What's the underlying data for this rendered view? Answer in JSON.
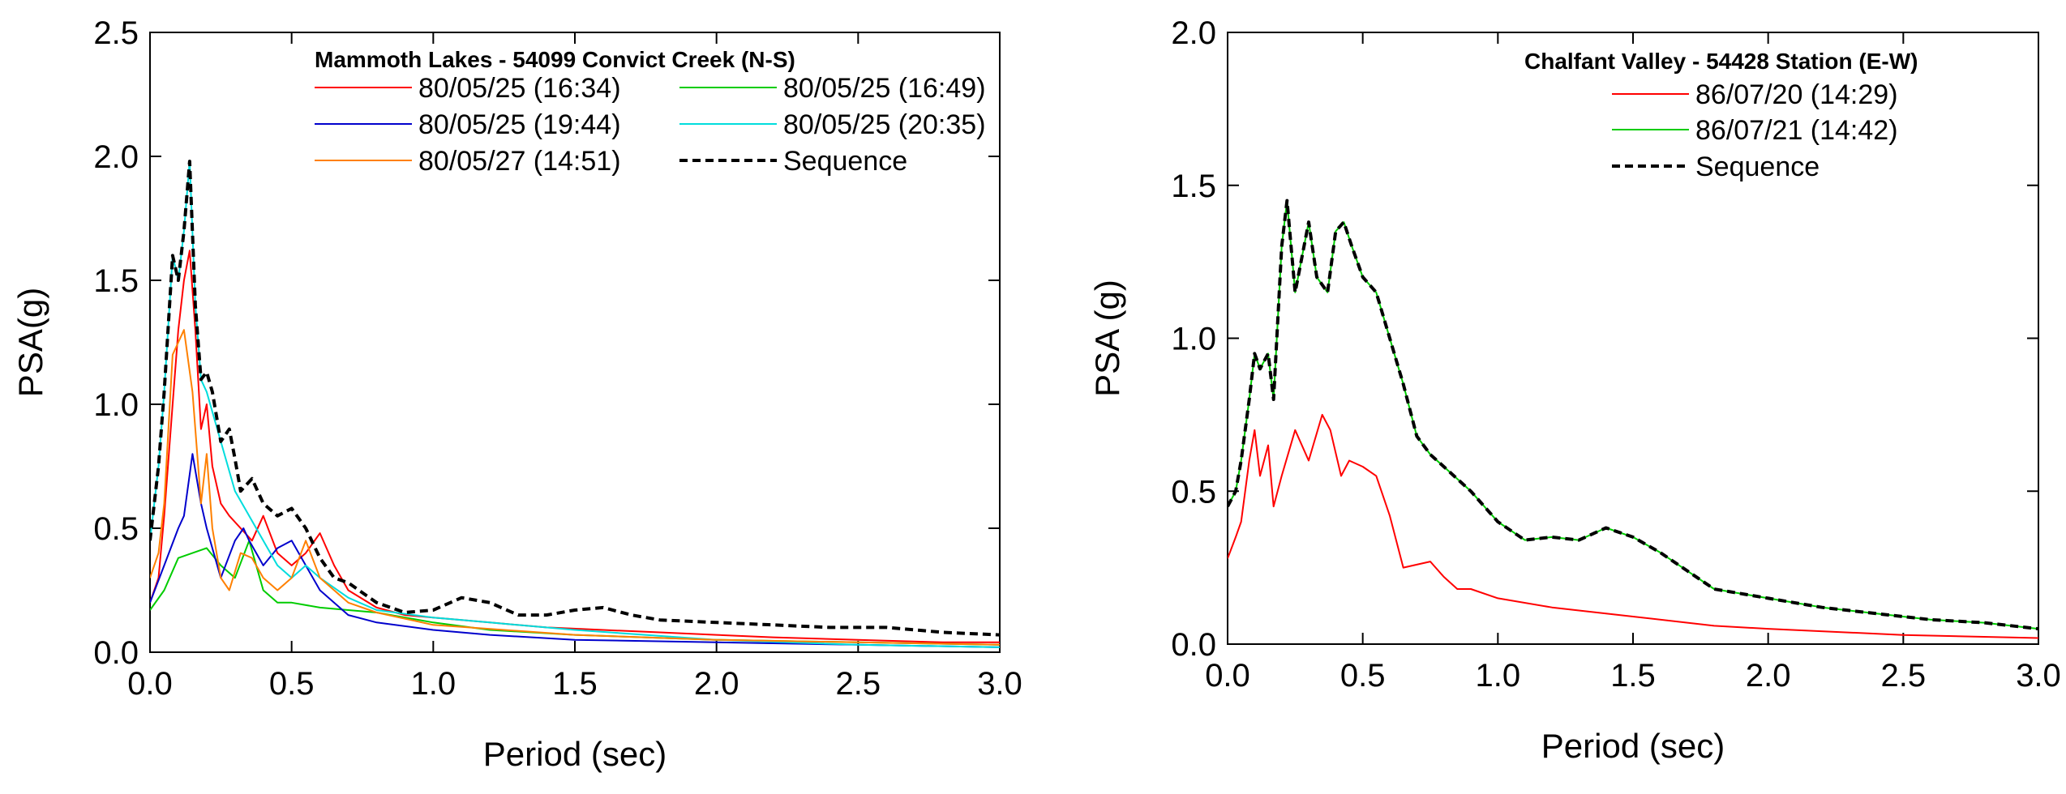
{
  "chart_data": [
    {
      "type": "line",
      "title": "Mammoth Lakes - 54099 Convict Creek (N-S)",
      "xlabel": "Period (sec)",
      "ylabel": "PSA(g)",
      "xlim": [
        0,
        3
      ],
      "ylim": [
        0,
        2.5
      ],
      "xticks": [
        "0.0",
        "0.5",
        "1.0",
        "1.5",
        "2.0",
        "2.5",
        "3.0"
      ],
      "yticks": [
        "0.0",
        "0.5",
        "1.0",
        "1.5",
        "2.0",
        "2.5"
      ],
      "legend_position": "top-right",
      "series": [
        {
          "name": "80/05/25 (16:34)",
          "color": "#ff0000",
          "dash": "solid",
          "x": [
            0.0,
            0.03,
            0.05,
            0.08,
            0.1,
            0.12,
            0.14,
            0.16,
            0.18,
            0.2,
            0.22,
            0.25,
            0.28,
            0.32,
            0.36,
            0.4,
            0.45,
            0.5,
            0.55,
            0.6,
            0.65,
            0.7,
            0.8,
            0.9,
            1.0,
            1.1,
            1.2,
            1.4,
            1.6,
            1.8,
            2.0,
            2.2,
            2.5,
            2.8,
            3.0
          ],
          "y": [
            0.2,
            0.3,
            0.55,
            1.0,
            1.3,
            1.5,
            1.62,
            1.3,
            0.9,
            1.0,
            0.75,
            0.6,
            0.55,
            0.5,
            0.45,
            0.55,
            0.4,
            0.35,
            0.4,
            0.48,
            0.35,
            0.25,
            0.18,
            0.15,
            0.14,
            0.13,
            0.12,
            0.1,
            0.09,
            0.08,
            0.07,
            0.06,
            0.05,
            0.04,
            0.04
          ]
        },
        {
          "name": "80/05/25 (16:49)",
          "color": "#00cc00",
          "dash": "solid",
          "x": [
            0.0,
            0.05,
            0.1,
            0.15,
            0.2,
            0.25,
            0.3,
            0.35,
            0.4,
            0.45,
            0.5,
            0.6,
            0.7,
            0.8,
            1.0,
            1.2,
            1.5,
            2.0,
            2.5,
            3.0
          ],
          "y": [
            0.17,
            0.25,
            0.38,
            0.4,
            0.42,
            0.35,
            0.3,
            0.45,
            0.25,
            0.2,
            0.2,
            0.18,
            0.17,
            0.16,
            0.12,
            0.09,
            0.07,
            0.05,
            0.04,
            0.03
          ]
        },
        {
          "name": "80/05/25 (19:44)",
          "color": "#0000cc",
          "dash": "solid",
          "x": [
            0.0,
            0.05,
            0.1,
            0.12,
            0.15,
            0.18,
            0.2,
            0.25,
            0.3,
            0.33,
            0.35,
            0.4,
            0.45,
            0.5,
            0.55,
            0.6,
            0.7,
            0.8,
            1.0,
            1.2,
            1.5,
            2.0,
            2.5,
            3.0
          ],
          "y": [
            0.2,
            0.35,
            0.5,
            0.55,
            0.8,
            0.6,
            0.5,
            0.3,
            0.45,
            0.5,
            0.45,
            0.35,
            0.42,
            0.45,
            0.35,
            0.25,
            0.15,
            0.12,
            0.09,
            0.07,
            0.05,
            0.04,
            0.03,
            0.02
          ]
        },
        {
          "name": "80/05/25 (20:35)",
          "color": "#00dddd",
          "dash": "solid",
          "x": [
            0.0,
            0.03,
            0.05,
            0.08,
            0.1,
            0.12,
            0.14,
            0.16,
            0.18,
            0.2,
            0.25,
            0.3,
            0.35,
            0.4,
            0.45,
            0.5,
            0.55,
            0.6,
            0.7,
            0.8,
            1.0,
            1.2,
            1.5,
            2.0,
            2.5,
            3.0
          ],
          "y": [
            0.45,
            0.75,
            1.05,
            1.6,
            1.5,
            1.7,
            1.98,
            1.4,
            1.1,
            1.05,
            0.85,
            0.65,
            0.55,
            0.45,
            0.35,
            0.3,
            0.35,
            0.3,
            0.22,
            0.17,
            0.14,
            0.12,
            0.09,
            0.05,
            0.03,
            0.02
          ]
        },
        {
          "name": "80/05/27 (14:51)",
          "color": "#ff8000",
          "dash": "solid",
          "x": [
            0.0,
            0.03,
            0.05,
            0.08,
            0.1,
            0.12,
            0.15,
            0.18,
            0.2,
            0.22,
            0.25,
            0.28,
            0.32,
            0.36,
            0.4,
            0.45,
            0.5,
            0.55,
            0.6,
            0.7,
            0.8,
            1.0,
            1.5,
            2.0,
            2.5,
            3.0
          ],
          "y": [
            0.3,
            0.4,
            0.6,
            1.2,
            1.25,
            1.3,
            1.05,
            0.6,
            0.8,
            0.5,
            0.3,
            0.25,
            0.4,
            0.38,
            0.3,
            0.25,
            0.3,
            0.45,
            0.3,
            0.2,
            0.16,
            0.11,
            0.07,
            0.05,
            0.04,
            0.03
          ]
        },
        {
          "name": "Sequence",
          "color": "#000000",
          "dash": "dashed",
          "x": [
            0.0,
            0.03,
            0.05,
            0.08,
            0.1,
            0.12,
            0.14,
            0.16,
            0.18,
            0.2,
            0.22,
            0.25,
            0.28,
            0.3,
            0.32,
            0.36,
            0.4,
            0.45,
            0.5,
            0.55,
            0.6,
            0.65,
            0.7,
            0.8,
            0.9,
            1.0,
            1.1,
            1.2,
            1.3,
            1.4,
            1.5,
            1.6,
            1.7,
            1.8,
            2.0,
            2.2,
            2.4,
            2.6,
            2.8,
            3.0
          ],
          "y": [
            0.45,
            0.75,
            1.05,
            1.6,
            1.5,
            1.7,
            1.98,
            1.4,
            1.1,
            1.13,
            1.05,
            0.85,
            0.9,
            0.78,
            0.65,
            0.7,
            0.6,
            0.55,
            0.58,
            0.5,
            0.38,
            0.3,
            0.28,
            0.2,
            0.16,
            0.17,
            0.22,
            0.2,
            0.15,
            0.15,
            0.17,
            0.18,
            0.15,
            0.13,
            0.12,
            0.11,
            0.1,
            0.1,
            0.08,
            0.07
          ]
        }
      ]
    },
    {
      "type": "line",
      "title": "Chalfant Valley - 54428 Station (E-W)",
      "xlabel": "Period (sec)",
      "ylabel": "PSA (g)",
      "xlim": [
        0,
        3
      ],
      "ylim": [
        0,
        2
      ],
      "xticks": [
        "0.0",
        "0.5",
        "1.0",
        "1.5",
        "2.0",
        "2.5",
        "3.0"
      ],
      "yticks": [
        "0.0",
        "0.5",
        "1.0",
        "1.5",
        "2.0"
      ],
      "legend_position": "top-right",
      "series": [
        {
          "name": "86/07/20 (14:29)",
          "color": "#ff0000",
          "dash": "solid",
          "x": [
            0.0,
            0.03,
            0.05,
            0.08,
            0.1,
            0.12,
            0.15,
            0.17,
            0.2,
            0.25,
            0.3,
            0.35,
            0.38,
            0.42,
            0.45,
            0.5,
            0.55,
            0.6,
            0.65,
            0.7,
            0.75,
            0.8,
            0.85,
            0.9,
            1.0,
            1.2,
            1.5,
            1.8,
            2.0,
            2.5,
            3.0
          ],
          "y": [
            0.28,
            0.35,
            0.4,
            0.6,
            0.7,
            0.55,
            0.65,
            0.45,
            0.55,
            0.7,
            0.6,
            0.75,
            0.7,
            0.55,
            0.6,
            0.58,
            0.55,
            0.42,
            0.25,
            0.26,
            0.27,
            0.22,
            0.18,
            0.18,
            0.15,
            0.12,
            0.09,
            0.06,
            0.05,
            0.03,
            0.02
          ]
        },
        {
          "name": "86/07/21 (14:42)",
          "color": "#00cc00",
          "dash": "solid",
          "x": [
            0.0,
            0.03,
            0.05,
            0.08,
            0.1,
            0.12,
            0.15,
            0.17,
            0.2,
            0.22,
            0.25,
            0.3,
            0.33,
            0.37,
            0.4,
            0.43,
            0.46,
            0.5,
            0.55,
            0.6,
            0.65,
            0.7,
            0.75,
            0.8,
            0.9,
            1.0,
            1.1,
            1.2,
            1.3,
            1.4,
            1.5,
            1.6,
            1.7,
            1.8,
            2.0,
            2.2,
            2.4,
            2.6,
            2.8,
            3.0
          ],
          "y": [
            0.45,
            0.5,
            0.6,
            0.8,
            0.95,
            0.9,
            0.95,
            0.8,
            1.3,
            1.45,
            1.15,
            1.38,
            1.2,
            1.15,
            1.35,
            1.38,
            1.3,
            1.2,
            1.15,
            1.0,
            0.85,
            0.68,
            0.62,
            0.58,
            0.5,
            0.4,
            0.34,
            0.35,
            0.34,
            0.38,
            0.35,
            0.3,
            0.24,
            0.18,
            0.15,
            0.12,
            0.1,
            0.08,
            0.07,
            0.05
          ]
        },
        {
          "name": "Sequence",
          "color": "#000000",
          "dash": "dashed",
          "x": [
            0.0,
            0.03,
            0.05,
            0.08,
            0.1,
            0.12,
            0.15,
            0.17,
            0.2,
            0.22,
            0.25,
            0.3,
            0.33,
            0.37,
            0.4,
            0.43,
            0.46,
            0.5,
            0.55,
            0.6,
            0.65,
            0.7,
            0.75,
            0.8,
            0.9,
            1.0,
            1.1,
            1.2,
            1.3,
            1.4,
            1.5,
            1.6,
            1.7,
            1.8,
            2.0,
            2.2,
            2.4,
            2.6,
            2.8,
            3.0
          ],
          "y": [
            0.45,
            0.5,
            0.6,
            0.8,
            0.95,
            0.9,
            0.95,
            0.8,
            1.3,
            1.45,
            1.15,
            1.38,
            1.2,
            1.15,
            1.35,
            1.38,
            1.3,
            1.2,
            1.15,
            1.0,
            0.85,
            0.68,
            0.62,
            0.58,
            0.5,
            0.4,
            0.34,
            0.35,
            0.34,
            0.38,
            0.35,
            0.3,
            0.24,
            0.18,
            0.15,
            0.12,
            0.1,
            0.08,
            0.07,
            0.05
          ]
        }
      ]
    }
  ]
}
